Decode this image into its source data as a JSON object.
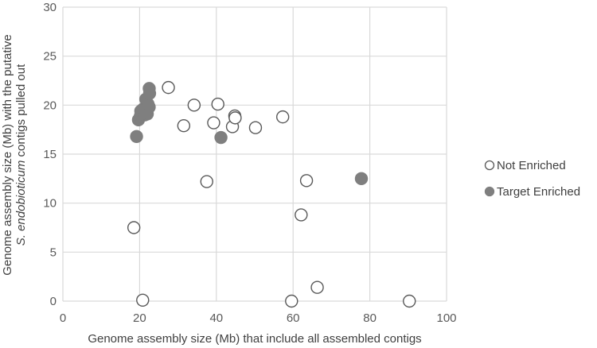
{
  "chart_data": {
    "type": "scatter",
    "xlabel": "Genome assembly size (Mb) that include all assembled contigs",
    "ylabel_line1": "Genome assembly size (Mb) with the putative",
    "ylabel_line2_prefix": "S. endobioticum",
    "ylabel_line2_suffix": " contigs pulled out",
    "xlim": [
      0,
      100
    ],
    "ylim": [
      0,
      30
    ],
    "xticks": [
      0,
      20,
      40,
      60,
      80,
      100
    ],
    "yticks": [
      0,
      5,
      10,
      15,
      20,
      25,
      30
    ],
    "grid": "vertical and horizontal",
    "legend_position": "right",
    "series": [
      {
        "name": "Not Enriched",
        "marker": "open-circle",
        "color": "#595959",
        "points": [
          {
            "x": 18.5,
            "y": 7.5
          },
          {
            "x": 20.8,
            "y": 0.1
          },
          {
            "x": 27.5,
            "y": 21.8
          },
          {
            "x": 31.5,
            "y": 17.9
          },
          {
            "x": 34.2,
            "y": 20.0
          },
          {
            "x": 37.5,
            "y": 12.2
          },
          {
            "x": 39.3,
            "y": 18.2
          },
          {
            "x": 40.4,
            "y": 20.1
          },
          {
            "x": 44.2,
            "y": 17.8
          },
          {
            "x": 44.8,
            "y": 18.9
          },
          {
            "x": 44.9,
            "y": 18.7
          },
          {
            "x": 50.2,
            "y": 17.7
          },
          {
            "x": 57.3,
            "y": 18.8
          },
          {
            "x": 59.6,
            "y": 0.0
          },
          {
            "x": 62.1,
            "y": 8.8
          },
          {
            "x": 63.5,
            "y": 12.3
          },
          {
            "x": 66.3,
            "y": 1.4
          },
          {
            "x": 90.3,
            "y": 0.0
          }
        ]
      },
      {
        "name": "Target Enriched",
        "marker": "filled-circle",
        "color": "#7f7f7f",
        "points": [
          {
            "x": 19.2,
            "y": 16.8
          },
          {
            "x": 19.7,
            "y": 18.5
          },
          {
            "x": 20.2,
            "y": 18.9
          },
          {
            "x": 20.3,
            "y": 19.4
          },
          {
            "x": 20.9,
            "y": 19.6
          },
          {
            "x": 21.3,
            "y": 19.0
          },
          {
            "x": 21.6,
            "y": 20.6
          },
          {
            "x": 22.0,
            "y": 19.1
          },
          {
            "x": 22.2,
            "y": 20.1
          },
          {
            "x": 22.5,
            "y": 19.8
          },
          {
            "x": 22.5,
            "y": 21.7
          },
          {
            "x": 22.6,
            "y": 21.2
          },
          {
            "x": 41.2,
            "y": 16.7
          },
          {
            "x": 77.8,
            "y": 12.5
          }
        ]
      }
    ]
  }
}
